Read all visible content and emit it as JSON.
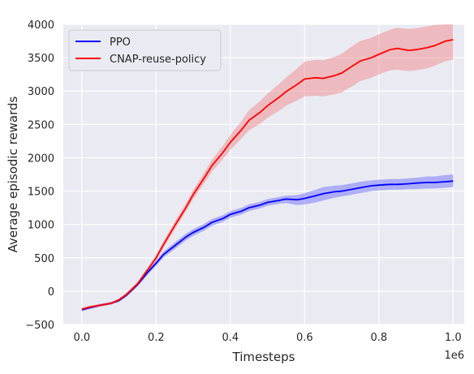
{
  "chart_data": {
    "type": "line",
    "title": "",
    "xlabel": "Timesteps",
    "ylabel": "Average episodic rewards",
    "x_offset_label": "1e6",
    "xlim": [
      -0.05,
      1.03
    ],
    "ylim": [
      -500,
      4000
    ],
    "xticks": [
      0.0,
      0.2,
      0.4,
      0.6,
      0.8,
      1.0
    ],
    "xtick_labels": [
      "0.0",
      "0.2",
      "0.4",
      "0.6",
      "0.8",
      "1.0"
    ],
    "yticks": [
      -500,
      0,
      500,
      1000,
      1500,
      2000,
      2500,
      3000,
      3500,
      4000
    ],
    "ytick_labels": [
      "−500",
      "0",
      "500",
      "1000",
      "1500",
      "2000",
      "2500",
      "3000",
      "3500",
      "4000"
    ],
    "grid": true,
    "legend_position": "top-left",
    "background_color": "#eaeaf2",
    "series": [
      {
        "name": "PPO",
        "color": "#0000ff",
        "fill_color": "#6464ff",
        "x": [
          0.0,
          0.02,
          0.05,
          0.08,
          0.1,
          0.12,
          0.15,
          0.18,
          0.2,
          0.22,
          0.25,
          0.28,
          0.3,
          0.33,
          0.35,
          0.38,
          0.4,
          0.43,
          0.45,
          0.48,
          0.5,
          0.53,
          0.55,
          0.58,
          0.6,
          0.63,
          0.65,
          0.68,
          0.7,
          0.73,
          0.75,
          0.78,
          0.8,
          0.83,
          0.85,
          0.88,
          0.9,
          0.93,
          0.95,
          0.98,
          1.0
        ],
        "y": [
          -280,
          -250,
          -210,
          -180,
          -140,
          -60,
          100,
          300,
          420,
          550,
          680,
          810,
          880,
          960,
          1030,
          1090,
          1150,
          1200,
          1250,
          1290,
          1330,
          1360,
          1380,
          1370,
          1390,
          1430,
          1460,
          1490,
          1500,
          1530,
          1550,
          1580,
          1590,
          1600,
          1600,
          1610,
          1620,
          1630,
          1630,
          1640,
          1650
        ],
        "lower": [
          -300,
          -270,
          -230,
          -200,
          -160,
          -85,
          70,
          265,
          380,
          505,
          630,
          760,
          830,
          910,
          980,
          1040,
          1100,
          1150,
          1200,
          1240,
          1280,
          1310,
          1320,
          1290,
          1300,
          1330,
          1360,
          1400,
          1420,
          1450,
          1470,
          1500,
          1510,
          1520,
          1520,
          1530,
          1530,
          1540,
          1540,
          1550,
          1560
        ],
        "upper": [
          -260,
          -230,
          -190,
          -160,
          -120,
          -35,
          130,
          335,
          460,
          595,
          730,
          860,
          930,
          1010,
          1080,
          1140,
          1200,
          1250,
          1300,
          1340,
          1380,
          1410,
          1430,
          1440,
          1470,
          1520,
          1560,
          1580,
          1590,
          1620,
          1640,
          1660,
          1670,
          1680,
          1680,
          1690,
          1700,
          1720,
          1720,
          1740,
          1750
        ]
      },
      {
        "name": "CNAP-reuse-policy",
        "color": "#ff0000",
        "fill_color": "#f08080",
        "x": [
          0.0,
          0.02,
          0.05,
          0.08,
          0.1,
          0.12,
          0.15,
          0.18,
          0.2,
          0.22,
          0.25,
          0.28,
          0.3,
          0.33,
          0.35,
          0.38,
          0.4,
          0.43,
          0.45,
          0.48,
          0.5,
          0.53,
          0.55,
          0.58,
          0.6,
          0.63,
          0.65,
          0.68,
          0.7,
          0.73,
          0.75,
          0.78,
          0.8,
          0.83,
          0.85,
          0.88,
          0.9,
          0.93,
          0.95,
          0.98,
          1.0
        ],
        "y": [
          -270,
          -240,
          -210,
          -180,
          -130,
          -50,
          110,
          340,
          500,
          700,
          980,
          1250,
          1450,
          1700,
          1880,
          2080,
          2230,
          2420,
          2560,
          2680,
          2780,
          2900,
          2990,
          3100,
          3180,
          3200,
          3190,
          3230,
          3270,
          3380,
          3450,
          3500,
          3550,
          3620,
          3640,
          3610,
          3620,
          3650,
          3680,
          3750,
          3770
        ],
        "lower": [
          -290,
          -260,
          -230,
          -200,
          -150,
          -75,
          80,
          300,
          450,
          650,
          920,
          1190,
          1380,
          1620,
          1790,
          1980,
          2120,
          2290,
          2410,
          2510,
          2600,
          2700,
          2780,
          2860,
          2920,
          2930,
          2920,
          2950,
          2980,
          3080,
          3150,
          3200,
          3250,
          3310,
          3320,
          3300,
          3310,
          3340,
          3380,
          3450,
          3470
        ],
        "upper": [
          -250,
          -220,
          -190,
          -160,
          -110,
          -25,
          140,
          380,
          550,
          750,
          1040,
          1310,
          1520,
          1780,
          1970,
          2180,
          2340,
          2550,
          2710,
          2850,
          2960,
          3100,
          3200,
          3340,
          3440,
          3470,
          3460,
          3510,
          3560,
          3680,
          3750,
          3800,
          3850,
          3920,
          3950,
          3930,
          3940,
          3970,
          3990,
          4000,
          4000
        ]
      }
    ]
  }
}
